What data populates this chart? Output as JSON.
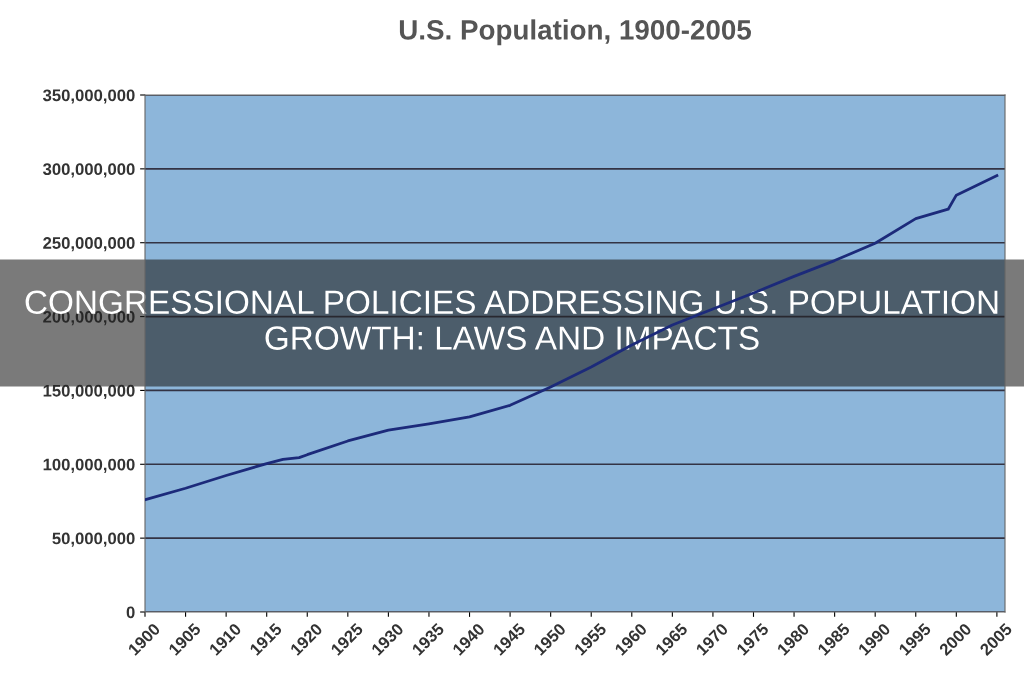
{
  "chart_data": {
    "type": "line",
    "title": "U.S. Population, 1900-2005",
    "x": [
      1900,
      1905,
      1910,
      1915,
      1917,
      1919,
      1920,
      1925,
      1930,
      1935,
      1940,
      1945,
      1950,
      1955,
      1960,
      1965,
      1970,
      1975,
      1980,
      1985,
      1990,
      1995,
      1999,
      2000,
      2005
    ],
    "series": [
      {
        "color": "#1c2a7a",
        "values": [
          76000000,
          83800000,
          92400000,
          100500000,
          103300000,
          104500000,
          106500000,
          115800000,
          123100000,
          127300000,
          132100000,
          139900000,
          152300000,
          165900000,
          180700000,
          194300000,
          205100000,
          216000000,
          227200000,
          237900000,
          249600000,
          266300000,
          272700000,
          282200000,
          295500000
        ]
      }
    ],
    "xlim": [
      1900,
      2006
    ],
    "xticks": [
      1900,
      1905,
      1910,
      1915,
      1920,
      1925,
      1930,
      1935,
      1940,
      1945,
      1950,
      1955,
      1960,
      1965,
      1970,
      1975,
      1980,
      1985,
      1990,
      1995,
      2000,
      2005
    ],
    "ylim": [
      0,
      350000000
    ],
    "yticks": [
      {
        "value": 0,
        "label": "0"
      },
      {
        "value": 50000000,
        "label": "50,000,000"
      },
      {
        "value": 100000000,
        "label": "100,000,000"
      },
      {
        "value": 150000000,
        "label": "150,000,000"
      },
      {
        "value": 200000000,
        "label": "200,000,000"
      },
      {
        "value": 250000000,
        "label": "250,000,000"
      },
      {
        "value": 300000000,
        "label": "300,000,000"
      },
      {
        "value": 350000000,
        "label": "350,000,000"
      }
    ],
    "grid": "y",
    "marker": "none",
    "line_style": "solid",
    "legend": false,
    "annotations": [
      "CONGRESSIONAL POLICIES ADDRESSING U.S. POPULATION GROWTH: LAWS AND IMPACTS"
    ]
  }
}
